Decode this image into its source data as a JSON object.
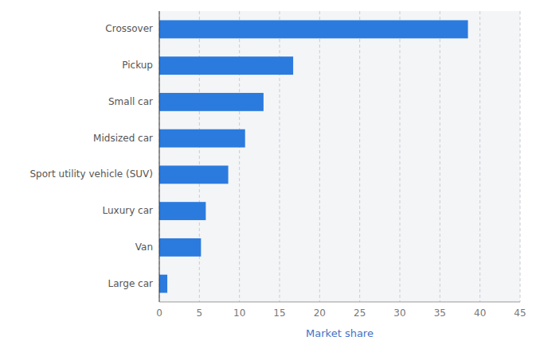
{
  "chart_data": {
    "type": "bar",
    "orientation": "horizontal",
    "categories": [
      "Large car",
      "Van",
      "Luxury car",
      "Sport utility vehicle (SUV)",
      "Midsized car",
      "Small car",
      "Pickup",
      "Crossover"
    ],
    "values": [
      1.0,
      5.2,
      5.8,
      8.6,
      10.7,
      13.0,
      16.7,
      38.5
    ],
    "color": "#2b7bde",
    "xlabel": "Market share",
    "xlim": [
      0,
      45
    ],
    "xticks": [
      0,
      5,
      10,
      15,
      20,
      25,
      30,
      35,
      40,
      45
    ],
    "grid": true
  }
}
